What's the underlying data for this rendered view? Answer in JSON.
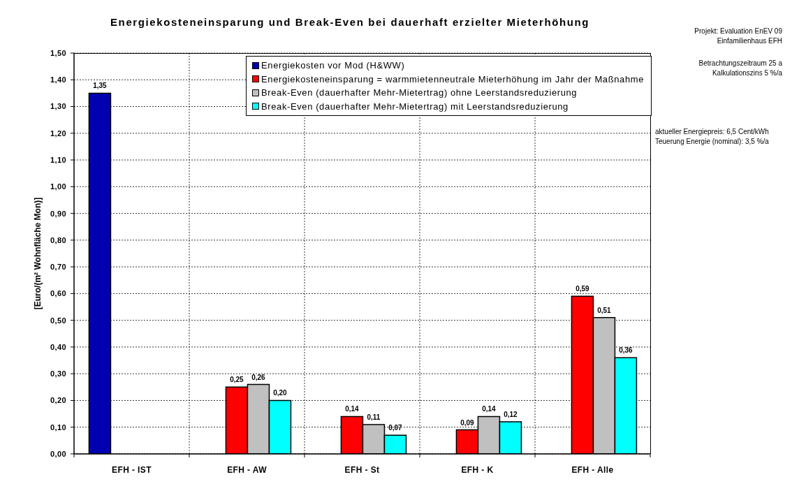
{
  "chart_data": {
    "type": "bar",
    "title": "Energiekosteneinsparung und Break-Even bei dauerhaft erzielter Mieterhöhung",
    "ylabel": "[Euro/(m² Wohnfläche Mon)]",
    "categories": [
      "EFH - IST",
      "EFH - AW",
      "EFH - St",
      "EFH - K",
      "EFH - Alle"
    ],
    "series": [
      {
        "name": "Energiekosten vor Mod (H&WW)",
        "color": "#0000b0",
        "values": [
          1.35,
          null,
          null,
          null,
          null
        ],
        "value_labels": [
          "1,35",
          null,
          null,
          null,
          null
        ]
      },
      {
        "name": "Energiekosteneinsparung = warmmietenneutrale Mieterhöhung im Jahr der Maßnahme",
        "color": "#ff0000",
        "values": [
          null,
          0.25,
          0.14,
          0.09,
          0.59
        ],
        "value_labels": [
          null,
          "0,25",
          "0,14",
          "0,09",
          "0,59"
        ]
      },
      {
        "name": "Break-Even (dauerhafter Mehr-Mietertrag) ohne Leerstandsreduzierung",
        "color": "#c0c0c0",
        "values": [
          null,
          0.26,
          0.11,
          0.14,
          0.51
        ],
        "value_labels": [
          null,
          "0,26",
          "0,11",
          "0,14",
          "0,51"
        ]
      },
      {
        "name": "Break-Even (dauerhafter Mehr-Mietertrag) mit Leerstandsreduzierung",
        "color": "#00ffff",
        "values": [
          null,
          0.2,
          0.07,
          0.12,
          0.36
        ],
        "value_labels": [
          null,
          "0,20",
          "0,07",
          "0,12",
          "0,36"
        ]
      }
    ],
    "ylim": [
      0,
      1.5
    ],
    "yticks": [
      {
        "value": 0,
        "label": "0,00"
      },
      {
        "value": 0.1,
        "label": "0,10"
      },
      {
        "value": 0.2,
        "label": "0,20"
      },
      {
        "value": 0.3,
        "label": "0,30"
      },
      {
        "value": 0.4,
        "label": "0,40"
      },
      {
        "value": 0.5,
        "label": "0,50"
      },
      {
        "value": 0.6,
        "label": "0,60"
      },
      {
        "value": 0.7,
        "label": "0,70"
      },
      {
        "value": 0.8,
        "label": "0,80"
      },
      {
        "value": 0.9,
        "label": "0,90"
      },
      {
        "value": 1.0,
        "label": "1,00"
      },
      {
        "value": 1.1,
        "label": "1,10"
      },
      {
        "value": 1.2,
        "label": "1,20"
      },
      {
        "value": 1.3,
        "label": "1,30"
      },
      {
        "value": 1.4,
        "label": "1,40"
      },
      {
        "value": 1.5,
        "label": "1,50"
      }
    ],
    "grid": true,
    "legend": "top right",
    "annotations": [
      "Projekt: Evaluation EnEV 09",
      "Einfamilienhaus EFH",
      "Betrachtungszeitraum 25 a",
      "Kalkulationszins 5 %/a",
      "aktueller Energiepreis: 6,5 Cent/kWh",
      "Teuerung Energie (nominal): 3,5 %/a"
    ]
  }
}
